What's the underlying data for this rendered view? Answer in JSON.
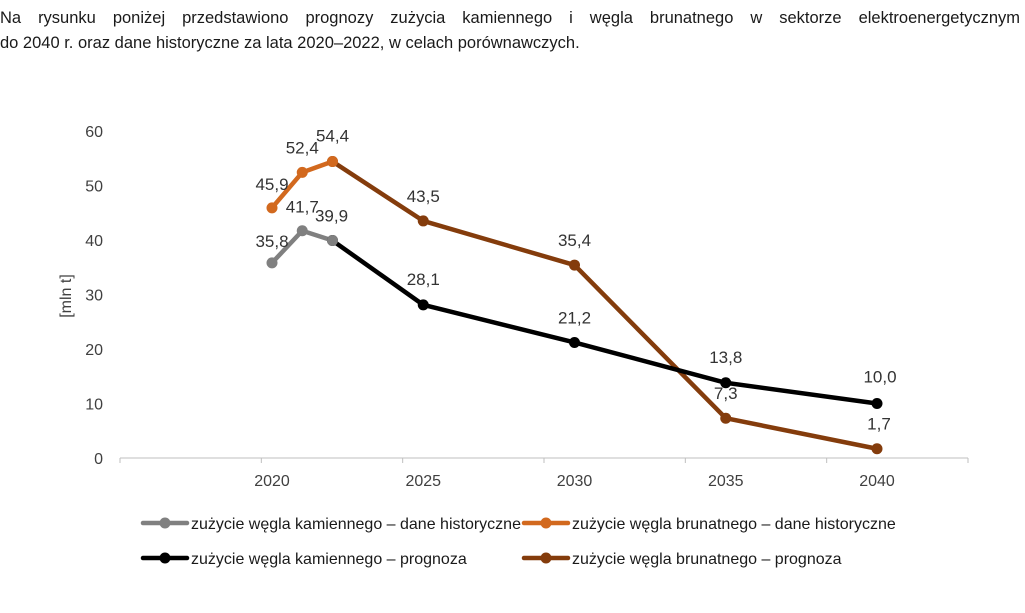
{
  "intro": {
    "line1": "Na rysunku poniżej przedstawiono prognozy zużycia kamiennego i węgla brunatnego w sektorze elektroenergetycznym",
    "line2": "do 2040 r. oraz dane historyczne za lata 2020–2022, w celach porównawczych."
  },
  "chart_data": {
    "type": "line",
    "ylabel": "[mln t]",
    "xlabel": "",
    "ylim": [
      0,
      60
    ],
    "yticks": [
      "0",
      "10",
      "20",
      "30",
      "40",
      "50",
      "60"
    ],
    "xticks": [
      "2020",
      "2025",
      "2030",
      "2035",
      "2040"
    ],
    "grid": false,
    "legend_position": "bottom",
    "series": [
      {
        "name": "zużycie węgla kamiennego – dane historyczne",
        "color": "#808080",
        "x": [
          2020,
          2021,
          2022
        ],
        "y": [
          35.8,
          41.7,
          39.9
        ],
        "labels": [
          "35,8",
          "41,7",
          "39,9"
        ]
      },
      {
        "name": "zużycie węgla brunatnego – dane historyczne",
        "color": "#d2691e",
        "x": [
          2020,
          2021,
          2022
        ],
        "y": [
          45.9,
          52.4,
          54.4
        ],
        "labels": [
          "45,9",
          "52,4",
          "54,4"
        ]
      },
      {
        "name": "zużycie węgla kamiennego – prognoza",
        "color": "#000000",
        "x": [
          2022,
          2025,
          2030,
          2035,
          2040
        ],
        "y": [
          39.9,
          28.1,
          21.2,
          13.8,
          10.0
        ],
        "labels": [
          "",
          "28,1",
          "21,2",
          "13,8",
          "10,0"
        ]
      },
      {
        "name": "zużycie węgla brunatnego – prognoza",
        "color": "#843c0c",
        "x": [
          2022,
          2025,
          2030,
          2035,
          2040
        ],
        "y": [
          54.4,
          43.5,
          35.4,
          7.3,
          1.7
        ],
        "labels": [
          "",
          "43,5",
          "35,4",
          "7,3",
          "1,7"
        ]
      }
    ]
  }
}
